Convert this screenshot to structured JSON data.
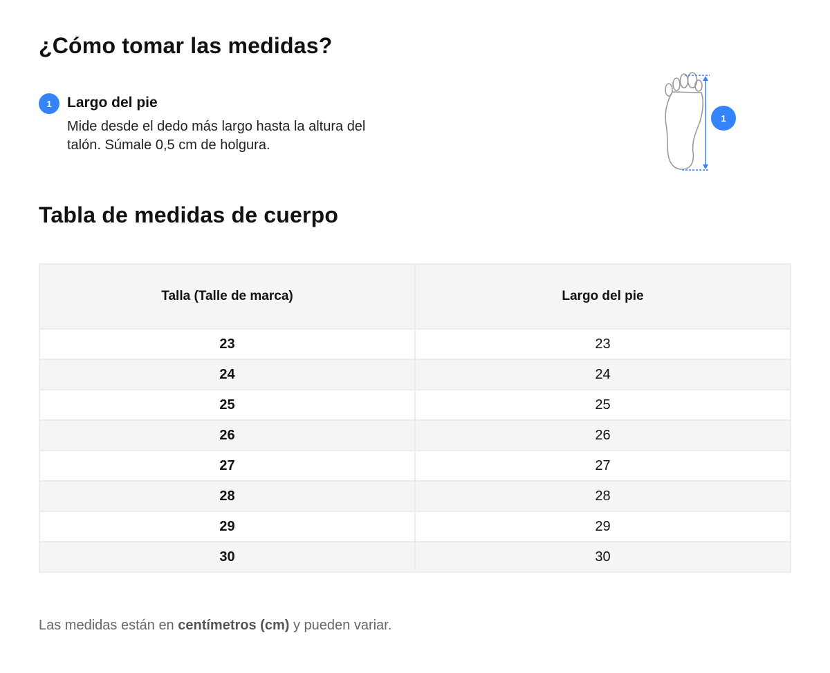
{
  "how_to": {
    "title": "¿Cómo tomar las medidas?",
    "step": {
      "number": "1",
      "title": "Largo del pie",
      "description": "Mide desde el dedo más largo hasta la altura del talón. Súmale 0,5 cm de holgura."
    },
    "figure": {
      "marker": "1",
      "icon": "foot-outline-icon",
      "accent_color": "#3483fa"
    }
  },
  "table_section": {
    "title": "Tabla de medidas de cuerpo",
    "headers": [
      "Talla (Talle de marca)",
      "Largo del pie"
    ],
    "rows": [
      [
        "23",
        "23"
      ],
      [
        "24",
        "24"
      ],
      [
        "25",
        "25"
      ],
      [
        "26",
        "26"
      ],
      [
        "27",
        "27"
      ],
      [
        "28",
        "28"
      ],
      [
        "29",
        "29"
      ],
      [
        "30",
        "30"
      ]
    ]
  },
  "note": {
    "prefix": "Las medidas están en ",
    "emphasis": "centímetros (cm)",
    "suffix": " y pueden variar."
  }
}
